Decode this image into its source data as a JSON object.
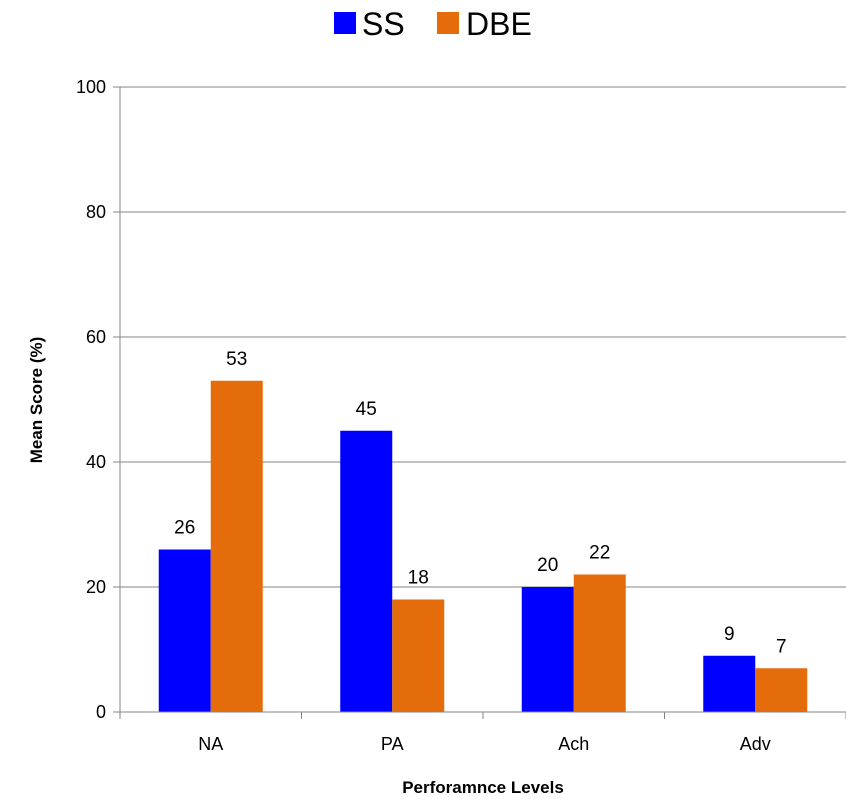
{
  "chart_data": {
    "type": "bar",
    "title": "",
    "xlabel": "Perforamnce Levels",
    "ylabel": "Mean Score (%)",
    "categories": [
      "NA",
      "PA",
      "Ach",
      "Adv"
    ],
    "series": [
      {
        "name": "SS",
        "color": "#0000ff",
        "values": [
          26,
          45,
          20,
          9
        ]
      },
      {
        "name": "DBE",
        "color": "#e46c0a",
        "values": [
          53,
          18,
          22,
          7
        ]
      }
    ],
    "ylim": [
      0,
      100
    ],
    "yticks": [
      0,
      20,
      40,
      60,
      80,
      100
    ],
    "grid": true,
    "legend": "top-center",
    "data_labels": true
  }
}
